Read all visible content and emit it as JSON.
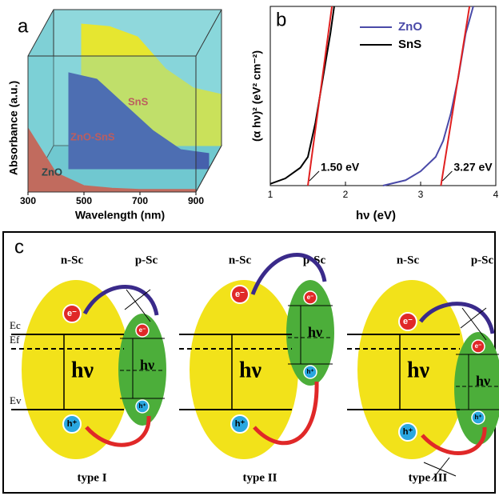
{
  "chart_data": [
    {
      "type": "area3d",
      "label": "a",
      "xlabel": "Wavelength (nm)",
      "ylabel": "Absorbance (a.u.)",
      "x": [
        300,
        400,
        500,
        600,
        700,
        800,
        900
      ],
      "xlim": [
        300,
        900
      ],
      "xticks": [
        300,
        500,
        700,
        900
      ],
      "ylim": [
        0,
        1
      ],
      "series": [
        {
          "name": "SnS",
          "color": "#e6e630",
          "values": [
            null,
            0.95,
            0.93,
            0.85,
            0.6,
            0.45,
            0.4
          ]
        },
        {
          "name": "ZnO-SnS",
          "color": "#363a9e",
          "values": [
            null,
            0.75,
            0.7,
            0.5,
            0.3,
            0.15,
            0.12
          ]
        },
        {
          "name": "ZnO",
          "color": "#e8351e",
          "values": [
            0.5,
            0.15,
            0.05,
            0.03,
            0.02,
            0.02,
            0.02
          ]
        }
      ]
    },
    {
      "type": "line",
      "label": "b",
      "xlabel": "hν (eV)",
      "ylabel": "(α hν)² (eV² cm⁻²)",
      "xlim": [
        1,
        4
      ],
      "xticks": [
        1,
        2,
        3,
        4
      ],
      "ylim": [
        0,
        10
      ],
      "legend": "top",
      "series": [
        {
          "name": "ZnO",
          "color": "#4a4aa8",
          "x": [
            2.5,
            2.8,
            3.0,
            3.2,
            3.3,
            3.4,
            3.5,
            3.6,
            3.7
          ],
          "values": [
            0,
            0.3,
            0.8,
            1.6,
            2.5,
            4,
            6,
            8.5,
            10
          ]
        },
        {
          "name": "SnS",
          "color": "#000000",
          "x": [
            1.0,
            1.2,
            1.4,
            1.5,
            1.6,
            1.7,
            1.8,
            1.85
          ],
          "values": [
            0.1,
            0.4,
            1.0,
            1.6,
            3.5,
            6,
            8.5,
            10
          ]
        }
      ],
      "fits": {
        "color": "#e02020",
        "lines": [
          {
            "x": [
              1.5,
              1.82
            ],
            "values": [
              0,
              10
            ]
          },
          {
            "x": [
              3.27,
              3.65
            ],
            "values": [
              0,
              10
            ]
          }
        ]
      },
      "annotations": [
        {
          "text": "1.50 eV",
          "x": 1.5
        },
        {
          "text": "3.27 eV",
          "x": 3.27
        }
      ]
    }
  ],
  "diagram": {
    "label": "c",
    "levels": [
      "Ec",
      "Ef",
      "Ev"
    ],
    "types": [
      {
        "name": "type I",
        "n": "n-Sc",
        "p": "p-Sc",
        "e_n": "e⁻",
        "e_p": "e⁻",
        "h_n": "h⁺",
        "h_p": "h⁺",
        "hv_n": "hν",
        "hv_p": "hν"
      },
      {
        "name": "type II",
        "n": "n-Sc",
        "p": "p-Sc",
        "e_n": "e⁻",
        "e_p": "e⁻",
        "h_n": "h⁺",
        "h_p": "h⁺",
        "hv_n": "hν",
        "hv_p": "hν"
      },
      {
        "name": "type III",
        "n": "n-Sc",
        "p": "p-Sc",
        "e_n": "e⁻",
        "e_p": "e⁻",
        "h_n": "h⁺",
        "h_p": "h⁺",
        "hv_n": "hν",
        "hv_p": "hν"
      }
    ]
  }
}
